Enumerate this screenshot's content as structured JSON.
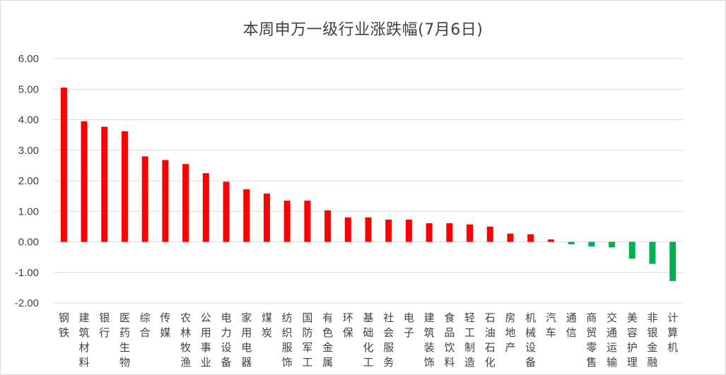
{
  "chart_data": {
    "type": "bar",
    "title": "本周申万一级行业涨跌幅(7月6日)",
    "ylim": [
      -2.0,
      6.0
    ],
    "yticks": [
      "6.00",
      "5.00",
      "4.00",
      "3.00",
      "2.00",
      "1.00",
      "0.00",
      "-1.00",
      "-2.00"
    ],
    "ytick_values": [
      6,
      5,
      4,
      3,
      2,
      1,
      0,
      -1,
      -2
    ],
    "grid": true,
    "positive_color": "#ff0000",
    "negative_color": "#00b050",
    "categories": [
      "钢铁",
      "建筑材料",
      "银行",
      "医药生物",
      "综合",
      "传媒",
      "农林牧渔",
      "公用事业",
      "电力设备",
      "家用电器",
      "煤炭",
      "纺织服饰",
      "国防军工",
      "有色金属",
      "环保",
      "基础化工",
      "社会服务",
      "电子",
      "建筑装饰",
      "食品饮料",
      "轻工制造",
      "石油石化",
      "房地产",
      "机械设备",
      "汽车",
      "通信",
      "商贸零售",
      "交通运输",
      "美容护理",
      "非银金融",
      "计算机"
    ],
    "values": [
      5.05,
      3.95,
      3.77,
      3.62,
      2.8,
      2.68,
      2.55,
      2.25,
      1.97,
      1.72,
      1.58,
      1.35,
      1.35,
      1.03,
      0.8,
      0.8,
      0.73,
      0.73,
      0.61,
      0.61,
      0.57,
      0.5,
      0.27,
      0.25,
      0.08,
      -0.08,
      -0.15,
      -0.18,
      -0.55,
      -0.72,
      -1.28
    ]
  }
}
